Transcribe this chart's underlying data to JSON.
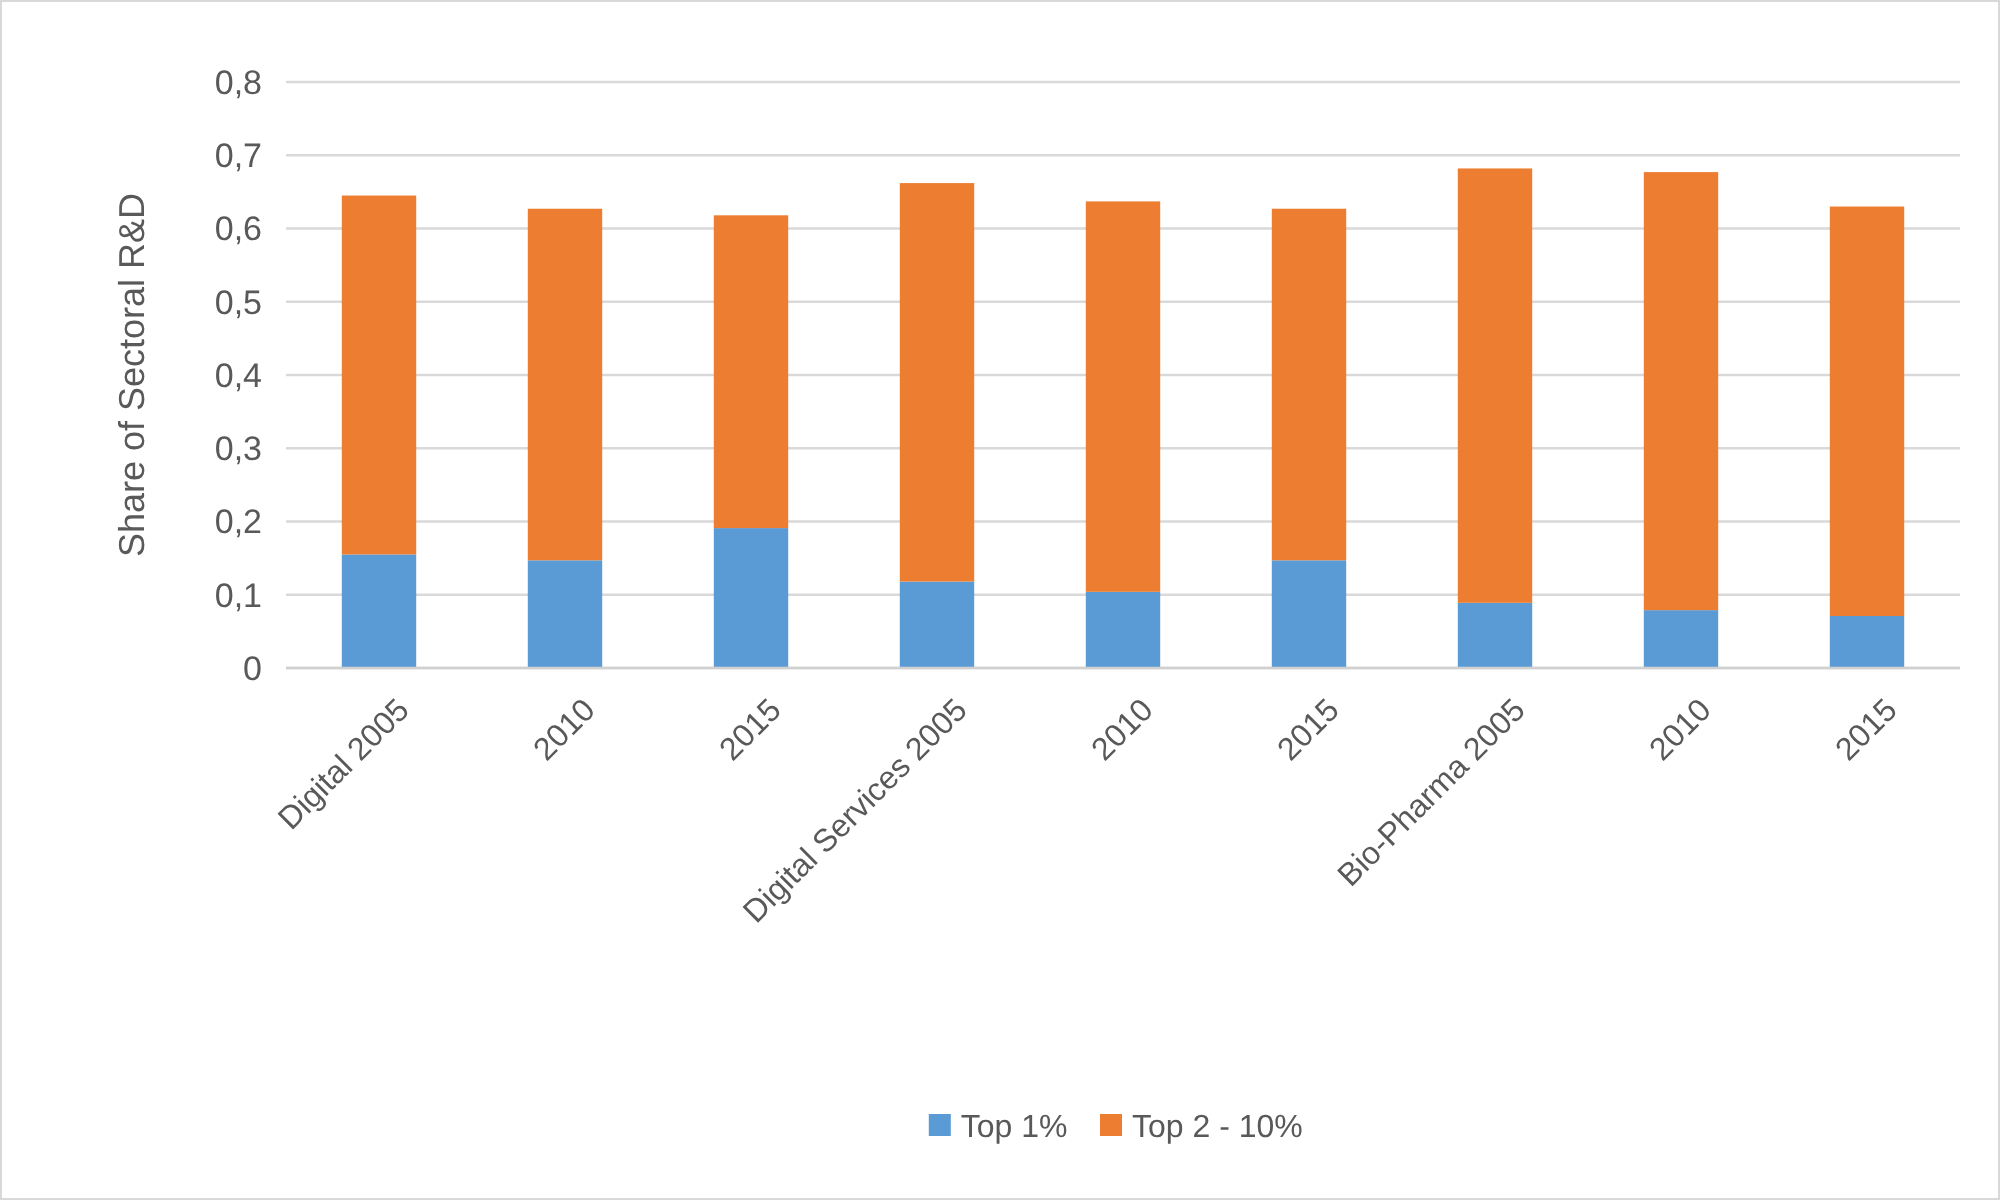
{
  "chart_data": {
    "type": "bar",
    "stacked": true,
    "ylabel": "Share of Sectoral R&D",
    "categories": [
      "Digital 2005",
      "2010",
      "2015",
      "Digital Services 2005",
      "2010",
      "2015",
      "Bio-Pharma 2005",
      "2010",
      "2015"
    ],
    "series": [
      {
        "name": "Top 1%",
        "color": "#5b9bd5",
        "values": [
          0.155,
          0.147,
          0.191,
          0.118,
          0.104,
          0.147,
          0.089,
          0.079,
          0.071
        ]
      },
      {
        "name": "Top 2 - 10%",
        "color": "#ed7d31",
        "values": [
          0.49,
          0.48,
          0.427,
          0.544,
          0.533,
          0.48,
          0.593,
          0.598,
          0.559
        ]
      }
    ],
    "ylim": [
      0,
      0.8
    ],
    "yticks": [
      {
        "value": 0,
        "label": "0"
      },
      {
        "value": 0.1,
        "label": "0,1"
      },
      {
        "value": 0.2,
        "label": "0,2"
      },
      {
        "value": 0.3,
        "label": "0,3"
      },
      {
        "value": 0.4,
        "label": "0,4"
      },
      {
        "value": 0.5,
        "label": "0,5"
      },
      {
        "value": 0.6,
        "label": "0,6"
      },
      {
        "value": 0.7,
        "label": "0,7"
      },
      {
        "value": 0.8,
        "label": "0,8"
      }
    ],
    "grid": "y",
    "legend": "bottom"
  }
}
